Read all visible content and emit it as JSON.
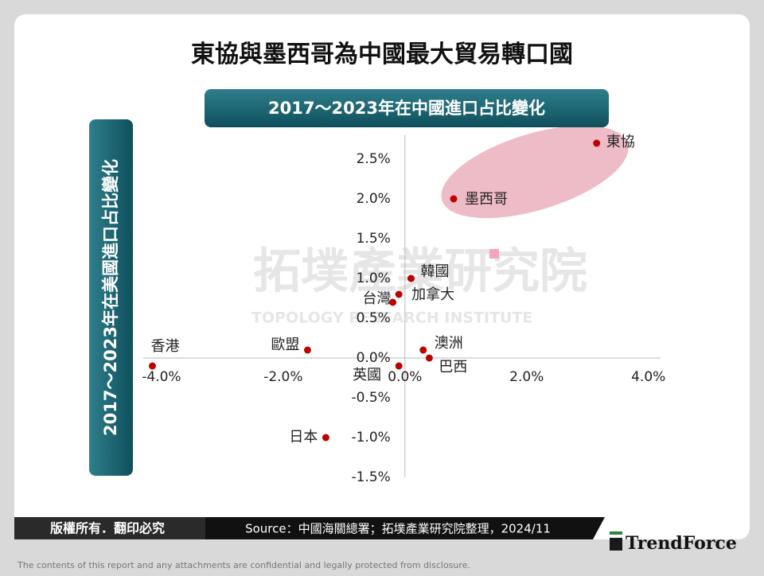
{
  "header": {
    "title": "東協與墨西哥為中國最大貿易轉口國"
  },
  "chart_data": {
    "type": "scatter",
    "title": "2017～2023年在中國進口占比變化",
    "y_label": "2017～2023年在美國進口占比變化",
    "watermark": [
      "拓墣產業研究院",
      "TOPOLOGY RESEARCH INSTITUTE"
    ],
    "labels": [
      "東協",
      "墨西哥",
      "韓國",
      "加拿大",
      "台灣",
      "澳洲",
      "巴西",
      "英國",
      "歐盟",
      "香港",
      "日本"
    ],
    "x": [
      3.15,
      0.8,
      0.1,
      -0.1,
      -0.2,
      0.3,
      0.4,
      -0.1,
      -1.6,
      -4.15,
      -1.3
    ],
    "values": [
      2.7,
      2.0,
      1.0,
      0.8,
      0.7,
      0.1,
      0.0,
      -0.1,
      0.1,
      -0.1,
      -1.0
    ],
    "color": "#c00000",
    "xlim": [
      -4.3,
      4.2
    ],
    "ylim": [
      -1.5,
      2.8
    ],
    "xticks": [
      {
        "value": -4.0,
        "label": "-4.0%"
      },
      {
        "value": -2.0,
        "label": "-2.0%"
      },
      {
        "value": 0.0,
        "label": "0.0%"
      },
      {
        "value": 2.0,
        "label": "2.0%"
      },
      {
        "value": 4.0,
        "label": "4.0%"
      }
    ],
    "yticks": [
      {
        "value": 2.5,
        "label": "2.5%"
      },
      {
        "value": 2.0,
        "label": "2.0%"
      },
      {
        "value": 1.5,
        "label": "1.5%"
      },
      {
        "value": 1.0,
        "label": "1.0%"
      },
      {
        "value": 0.5,
        "label": "0.5%"
      },
      {
        "value": 0.0,
        "label": "0.0%"
      },
      {
        "value": -0.5,
        "label": "-0.5%"
      },
      {
        "value": -1.0,
        "label": "-1.0%"
      },
      {
        "value": -1.5,
        "label": "-1.5%"
      }
    ]
  },
  "footer": {
    "copyright": "版權所有．翻印必究",
    "source": "Source：中國海關總署；拓墣產業研究院整理，2024/11",
    "logo": "TrendForce",
    "disclaimer": "The contents of this report and any attachments are confidential and legally protected from disclosure."
  }
}
